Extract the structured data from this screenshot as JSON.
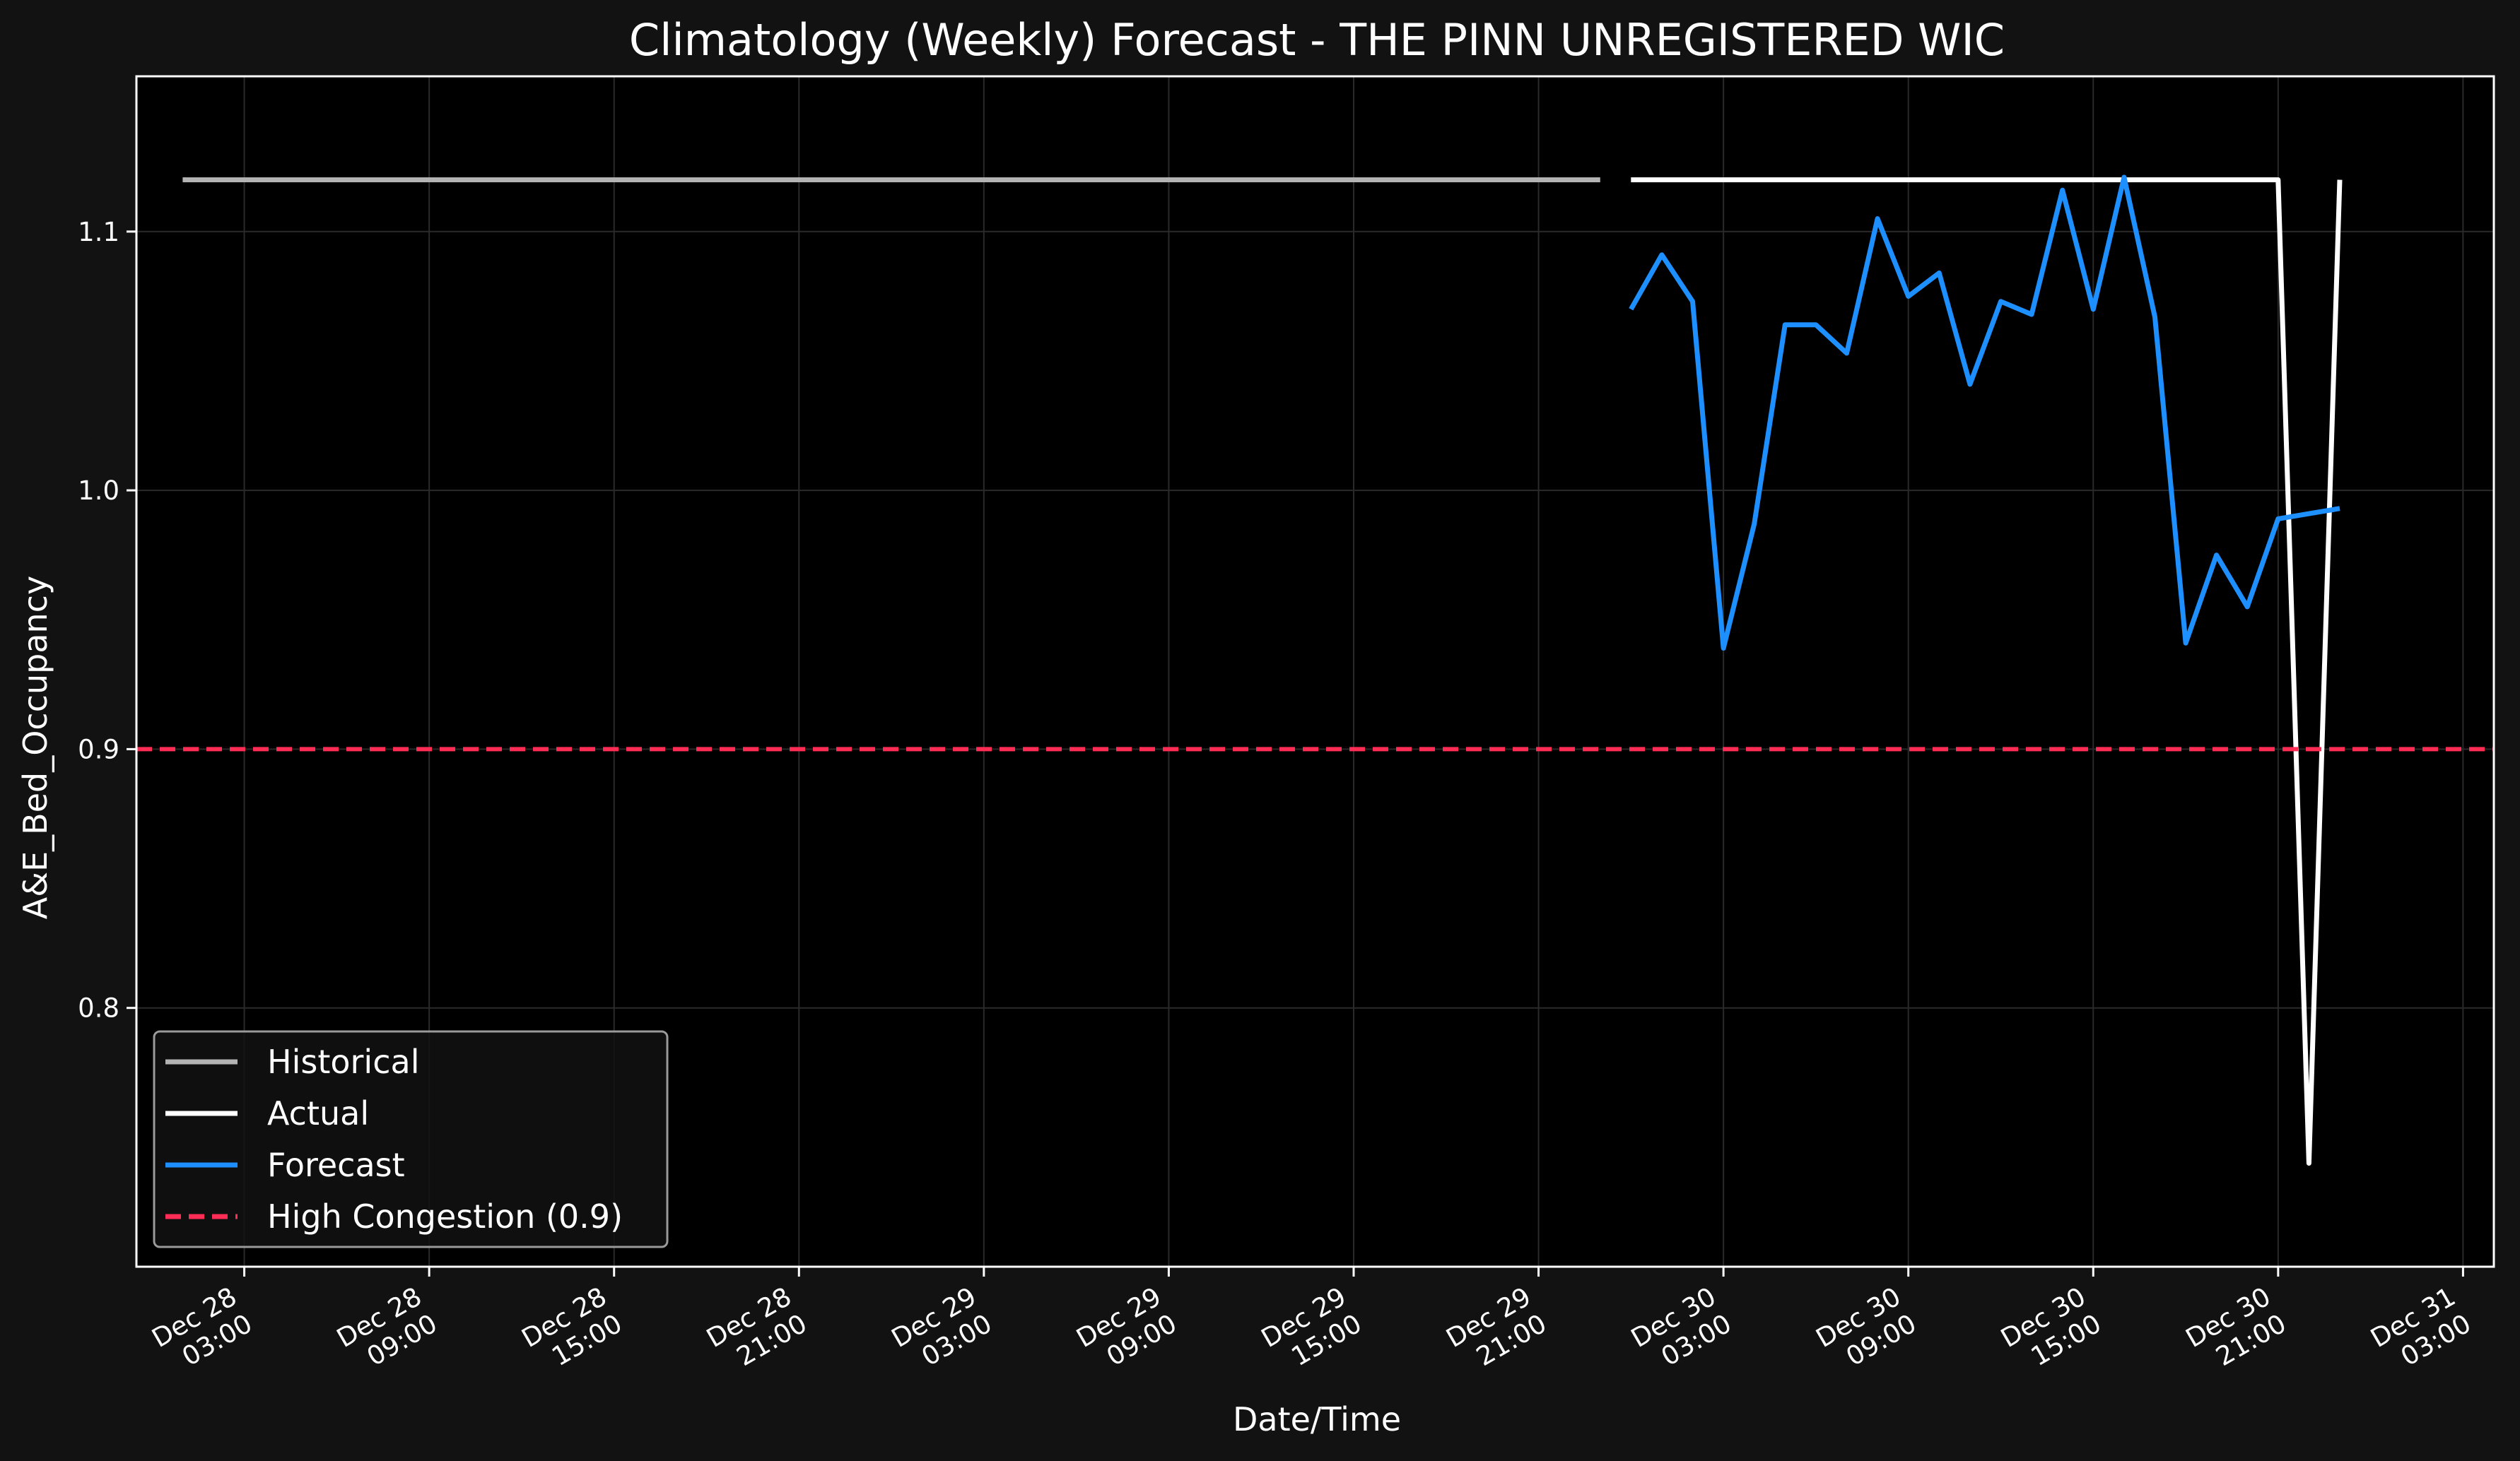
{
  "chart_data": {
    "type": "line",
    "title": "Climatology (Weekly) Forecast - THE PINN UNREGISTERED WIC",
    "xlabel": "Date/Time",
    "ylabel": "A&E_Bed_Occupancy",
    "xlim": [
      "2025-12-27 23:30",
      "2025-12-31 04:00"
    ],
    "ylim": [
      0.7,
      1.16
    ],
    "grid": true,
    "legend_position": "lower-left",
    "x_ticks": [
      {
        "t": "2025-12-28 03:00",
        "line1": "Dec 28",
        "line2": "03:00"
      },
      {
        "t": "2025-12-28 09:00",
        "line1": "Dec 28",
        "line2": "09:00"
      },
      {
        "t": "2025-12-28 15:00",
        "line1": "Dec 28",
        "line2": "15:00"
      },
      {
        "t": "2025-12-28 21:00",
        "line1": "Dec 28",
        "line2": "21:00"
      },
      {
        "t": "2025-12-29 03:00",
        "line1": "Dec 29",
        "line2": "03:00"
      },
      {
        "t": "2025-12-29 09:00",
        "line1": "Dec 29",
        "line2": "09:00"
      },
      {
        "t": "2025-12-29 15:00",
        "line1": "Dec 29",
        "line2": "15:00"
      },
      {
        "t": "2025-12-29 21:00",
        "line1": "Dec 29",
        "line2": "21:00"
      },
      {
        "t": "2025-12-30 03:00",
        "line1": "Dec 30",
        "line2": "03:00"
      },
      {
        "t": "2025-12-30 09:00",
        "line1": "Dec 30",
        "line2": "09:00"
      },
      {
        "t": "2025-12-30 15:00",
        "line1": "Dec 30",
        "line2": "15:00"
      },
      {
        "t": "2025-12-30 21:00",
        "line1": "Dec 30",
        "line2": "21:00"
      },
      {
        "t": "2025-12-31 03:00",
        "line1": "Dec 31",
        "line2": "03:00"
      }
    ],
    "y_ticks": [
      {
        "v": 0.8,
        "label": "0.8"
      },
      {
        "v": 0.9,
        "label": "0.9"
      },
      {
        "v": 1.0,
        "label": "1.0"
      },
      {
        "v": 1.1,
        "label": "1.1"
      }
    ],
    "series": [
      {
        "name": "Historical",
        "color": "#b3b3b3",
        "points": [
          {
            "t": "2025-12-28 01:00",
            "y": 1.12
          },
          {
            "t": "2025-12-29 23:00",
            "y": 1.12
          }
        ]
      },
      {
        "name": "Actual",
        "color": "#ffffff",
        "points": [
          {
            "t": "2025-12-30 00:00",
            "y": 1.12
          },
          {
            "t": "2025-12-30 21:00",
            "y": 1.12
          },
          {
            "t": "2025-12-30 22:00",
            "y": 0.74
          },
          {
            "t": "2025-12-30 23:00",
            "y": 1.12
          }
        ]
      },
      {
        "name": "Forecast",
        "color": "#1e8fff",
        "points": [
          {
            "t": "2025-12-30 00:00",
            "y": 1.07
          },
          {
            "t": "2025-12-30 01:00",
            "y": 1.091
          },
          {
            "t": "2025-12-30 02:00",
            "y": 1.073
          },
          {
            "t": "2025-12-30 03:00",
            "y": 0.939
          },
          {
            "t": "2025-12-30 04:00",
            "y": 0.987
          },
          {
            "t": "2025-12-30 05:00",
            "y": 1.064
          },
          {
            "t": "2025-12-30 06:00",
            "y": 1.064
          },
          {
            "t": "2025-12-30 07:00",
            "y": 1.053
          },
          {
            "t": "2025-12-30 08:00",
            "y": 1.105
          },
          {
            "t": "2025-12-30 09:00",
            "y": 1.075
          },
          {
            "t": "2025-12-30 10:00",
            "y": 1.084
          },
          {
            "t": "2025-12-30 11:00",
            "y": 1.041
          },
          {
            "t": "2025-12-30 12:00",
            "y": 1.073
          },
          {
            "t": "2025-12-30 13:00",
            "y": 1.068
          },
          {
            "t": "2025-12-30 14:00",
            "y": 1.116
          },
          {
            "t": "2025-12-30 15:00",
            "y": 1.07
          },
          {
            "t": "2025-12-30 16:00",
            "y": 1.121
          },
          {
            "t": "2025-12-30 17:00",
            "y": 1.067
          },
          {
            "t": "2025-12-30 18:00",
            "y": 0.941
          },
          {
            "t": "2025-12-30 19:00",
            "y": 0.975
          },
          {
            "t": "2025-12-30 20:00",
            "y": 0.955
          },
          {
            "t": "2025-12-30 21:00",
            "y": 0.989
          },
          {
            "t": "2025-12-30 22:00",
            "y": 0.991
          },
          {
            "t": "2025-12-30 23:00",
            "y": 0.993
          }
        ]
      },
      {
        "name": "High Congestion (0.9)",
        "color": "#ff2d55",
        "style": "dashed",
        "y": 0.9
      }
    ]
  }
}
